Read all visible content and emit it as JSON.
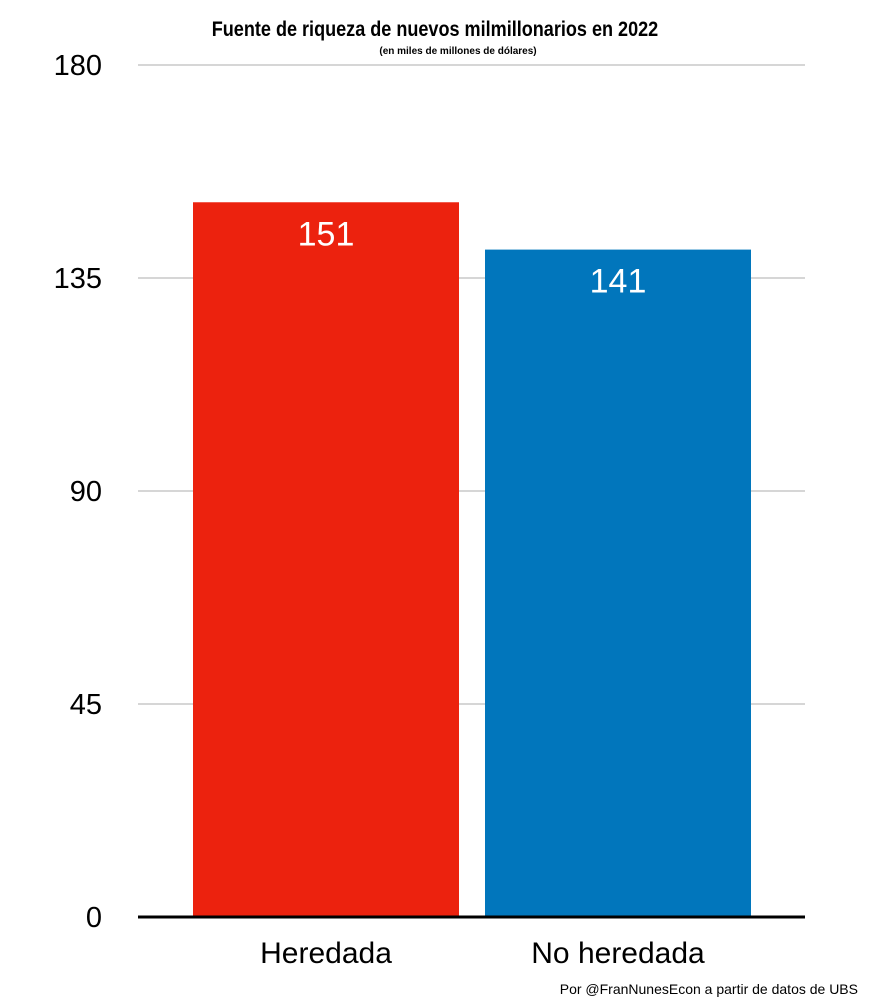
{
  "chart_data": {
    "type": "bar",
    "title": "Fuente de riqueza de nuevos milmillonarios en 2022",
    "subtitle": "(en miles de millones de dólares)",
    "categories": [
      "Heredada",
      "No heredada"
    ],
    "values": [
      151,
      141
    ],
    "data_labels": [
      "151",
      "141"
    ],
    "colors": [
      "#ec220e",
      "#0176bc"
    ],
    "y_ticks": [
      0,
      45,
      90,
      135,
      180
    ],
    "y_tick_labels": [
      "0",
      "45",
      "90",
      "135",
      "180"
    ],
    "ylim": [
      0,
      180
    ],
    "grid": true,
    "legend": "none"
  },
  "credit": "Por @FranNunesEcon a partir de datos de UBS"
}
